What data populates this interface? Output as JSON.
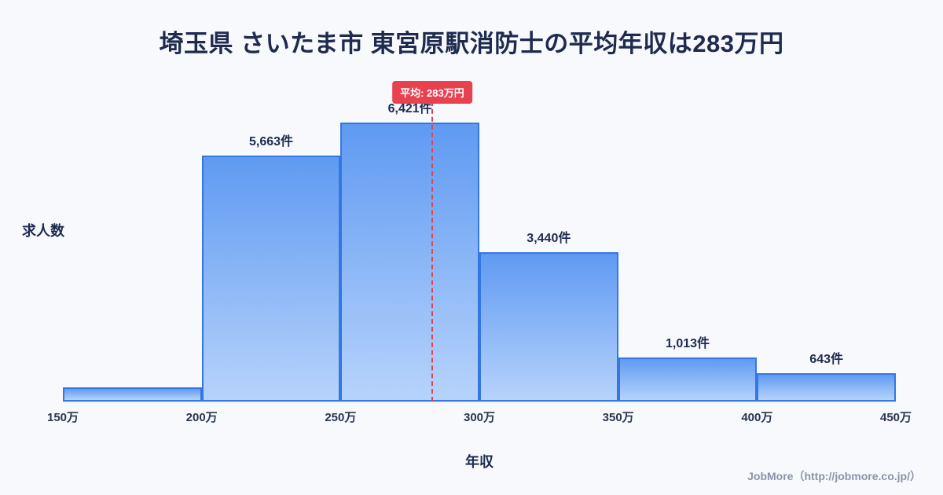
{
  "title": "埼玉県 さいたま市 東宮原駅消防士の平均年収は283万円",
  "chart_data": {
    "type": "bar",
    "subtype": "histogram",
    "title": "埼玉県 さいたま市 東宮原駅消防士の平均年収は283万円",
    "xlabel": "年収",
    "ylabel": "求人数",
    "x_ticks": [
      "150万",
      "200万",
      "250万",
      "300万",
      "350万",
      "400万",
      "450万"
    ],
    "x_range": [
      150,
      450
    ],
    "bin_width_man_yen": 50,
    "categories": [
      "150万-200万",
      "200万-250万",
      "250万-300万",
      "300万-350万",
      "350万-400万",
      "400万-450万"
    ],
    "values": [
      330,
      5663,
      6421,
      3440,
      1013,
      643
    ],
    "bar_labels": [
      "",
      "5,663件",
      "6,421件",
      "3,440件",
      "1,013件",
      "643件"
    ],
    "ylim": [
      0,
      6800
    ],
    "grid": false,
    "average": {
      "value": 283,
      "label": "平均: 283万円",
      "line_color": "#e8414f",
      "badge_color": "#e8414f"
    },
    "colors": {
      "bar_top": "#5f9af2",
      "bar_bottom": "#b7d3fb",
      "bar_border": "#3577e0",
      "title": "#1e2b4f",
      "background": "#f7f9fc"
    }
  },
  "footer": {
    "credit": "JobMore（http://jobmore.co.jp/）"
  }
}
